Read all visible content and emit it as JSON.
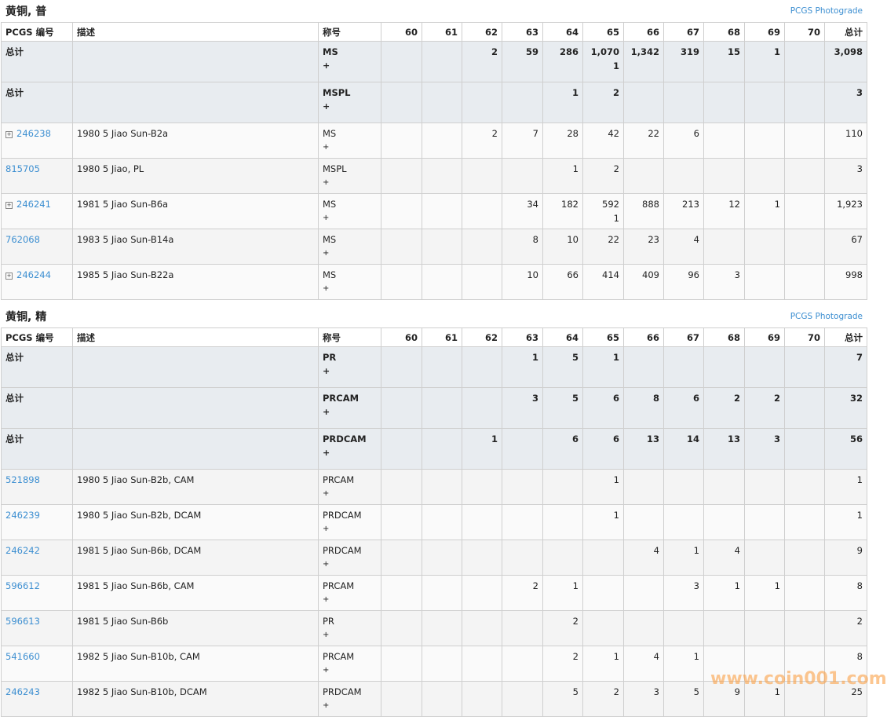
{
  "columns": [
    "PCGS 编号",
    "描述",
    "称号",
    "60",
    "61",
    "62",
    "63",
    "64",
    "65",
    "66",
    "67",
    "68",
    "69",
    "70",
    "总计"
  ],
  "photograde_label": "PCGS Photograde",
  "watermark": "www.coin001.com",
  "accent_link_color": "#3d8fd1",
  "sections": [
    {
      "title": "黄铜, 普",
      "totals": [
        {
          "label": "总计",
          "des": "MS",
          "plus": "+",
          "grades": [
            "",
            "",
            "2",
            "59",
            "286",
            "1,070\n1",
            "1,342",
            "319",
            "15",
            "1",
            ""
          ],
          "total": "3,098"
        },
        {
          "label": "总计",
          "des": "MSPL",
          "plus": "+",
          "grades": [
            "",
            "",
            "",
            "",
            "1",
            "2",
            "",
            "",
            "",
            "",
            ""
          ],
          "total": "3"
        }
      ],
      "items": [
        {
          "id": "246238",
          "expand": true,
          "desc": "1980 5 Jiao Sun-B2a",
          "des": "MS",
          "plus": "+",
          "grades": [
            "",
            "",
            "2",
            "7",
            "28",
            "42",
            "22",
            "6",
            "",
            "",
            ""
          ],
          "total": "110"
        },
        {
          "id": "815705",
          "expand": false,
          "desc": "1980 5 Jiao, PL",
          "des": "MSPL",
          "plus": "+",
          "grades": [
            "",
            "",
            "",
            "",
            "1",
            "2",
            "",
            "",
            "",
            "",
            ""
          ],
          "total": "3"
        },
        {
          "id": "246241",
          "expand": true,
          "desc": "1981 5 Jiao Sun-B6a",
          "des": "MS",
          "plus": "+",
          "grades": [
            "",
            "",
            "",
            "34",
            "182",
            "592\n1",
            "888",
            "213",
            "12",
            "1",
            ""
          ],
          "total": "1,923"
        },
        {
          "id": "762068",
          "expand": false,
          "desc": "1983 5 Jiao Sun-B14a",
          "des": "MS",
          "plus": "+",
          "grades": [
            "",
            "",
            "",
            "8",
            "10",
            "22",
            "23",
            "4",
            "",
            "",
            ""
          ],
          "total": "67"
        },
        {
          "id": "246244",
          "expand": true,
          "desc": "1985 5 Jiao Sun-B22a",
          "des": "MS",
          "plus": "+",
          "grades": [
            "",
            "",
            "",
            "10",
            "66",
            "414",
            "409",
            "96",
            "3",
            "",
            ""
          ],
          "total": "998"
        }
      ]
    },
    {
      "title": "黄铜, 精",
      "totals": [
        {
          "label": "总计",
          "des": "PR",
          "plus": "+",
          "grades": [
            "",
            "",
            "",
            "1",
            "5",
            "1",
            "",
            "",
            "",
            "",
            ""
          ],
          "total": "7"
        },
        {
          "label": "总计",
          "des": "PRCAM",
          "plus": "+",
          "grades": [
            "",
            "",
            "",
            "3",
            "5",
            "6",
            "8",
            "6",
            "2",
            "2",
            ""
          ],
          "total": "32"
        },
        {
          "label": "总计",
          "des": "PRDCAM",
          "plus": "+",
          "grades": [
            "",
            "",
            "1",
            "",
            "6",
            "6",
            "13",
            "14",
            "13",
            "3",
            ""
          ],
          "total": "56"
        }
      ],
      "items": [
        {
          "id": "521898",
          "expand": false,
          "desc": "1980 5 Jiao Sun-B2b, CAM",
          "des": "PRCAM",
          "plus": "+",
          "grades": [
            "",
            "",
            "",
            "",
            "",
            "1",
            "",
            "",
            "",
            "",
            ""
          ],
          "total": "1"
        },
        {
          "id": "246239",
          "expand": false,
          "desc": "1980 5 Jiao Sun-B2b, DCAM",
          "des": "PRDCAM",
          "plus": "+",
          "grades": [
            "",
            "",
            "",
            "",
            "",
            "1",
            "",
            "",
            "",
            "",
            ""
          ],
          "total": "1"
        },
        {
          "id": "246242",
          "expand": false,
          "desc": "1981 5 Jiao Sun-B6b, DCAM",
          "des": "PRDCAM",
          "plus": "+",
          "grades": [
            "",
            "",
            "",
            "",
            "",
            "",
            "4",
            "1",
            "4",
            "",
            ""
          ],
          "total": "9"
        },
        {
          "id": "596612",
          "expand": false,
          "desc": "1981 5 Jiao Sun-B6b, CAM",
          "des": "PRCAM",
          "plus": "+",
          "grades": [
            "",
            "",
            "",
            "2",
            "1",
            "",
            "",
            "3",
            "1",
            "1",
            ""
          ],
          "total": "8"
        },
        {
          "id": "596613",
          "expand": false,
          "desc": "1981 5 Jiao Sun-B6b",
          "des": "PR",
          "plus": "+",
          "grades": [
            "",
            "",
            "",
            "",
            "2",
            "",
            "",
            "",
            "",
            "",
            ""
          ],
          "total": "2"
        },
        {
          "id": "541660",
          "expand": false,
          "desc": "1982 5 Jiao Sun-B10b, CAM",
          "des": "PRCAM",
          "plus": "+",
          "grades": [
            "",
            "",
            "",
            "",
            "2",
            "1",
            "4",
            "1",
            "",
            "",
            ""
          ],
          "total": "8"
        },
        {
          "id": "246243",
          "expand": false,
          "desc": "1982 5 Jiao Sun-B10b, DCAM",
          "des": "PRDCAM",
          "plus": "+",
          "grades": [
            "",
            "",
            "",
            "",
            "5",
            "2",
            "3",
            "5",
            "9",
            "1",
            ""
          ],
          "total": "25"
        }
      ]
    }
  ]
}
